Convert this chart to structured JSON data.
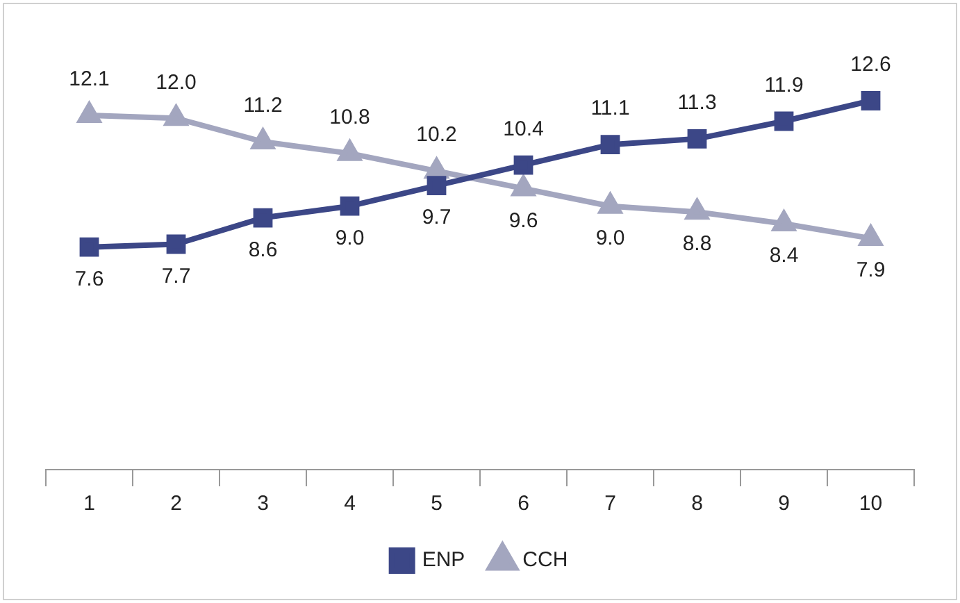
{
  "chart_data": {
    "type": "line",
    "categories": [
      "1",
      "2",
      "3",
      "4",
      "5",
      "6",
      "7",
      "8",
      "9",
      "10"
    ],
    "series": [
      {
        "name": "ENP",
        "color": "#3c4787",
        "marker": "square",
        "values": [
          7.6,
          7.7,
          8.6,
          9.0,
          9.7,
          10.4,
          11.1,
          11.3,
          11.9,
          12.6
        ],
        "value_labels": [
          "7.6",
          "7.7",
          "8.6",
          "9.0",
          "9.7",
          "10.4",
          "11.1",
          "11.3",
          "11.9",
          "12.6"
        ]
      },
      {
        "name": "CCH",
        "color": "#a3a6bf",
        "marker": "triangle",
        "values": [
          12.1,
          12.0,
          11.2,
          10.8,
          10.2,
          9.6,
          9.0,
          8.8,
          8.4,
          7.9
        ],
        "value_labels": [
          "12.1",
          "12.0",
          "11.2",
          "10.8",
          "10.2",
          "9.6",
          "9.0",
          "8.8",
          "8.4",
          "7.9"
        ]
      }
    ],
    "grid": false,
    "legend": "bottom",
    "line_style": "solid"
  }
}
